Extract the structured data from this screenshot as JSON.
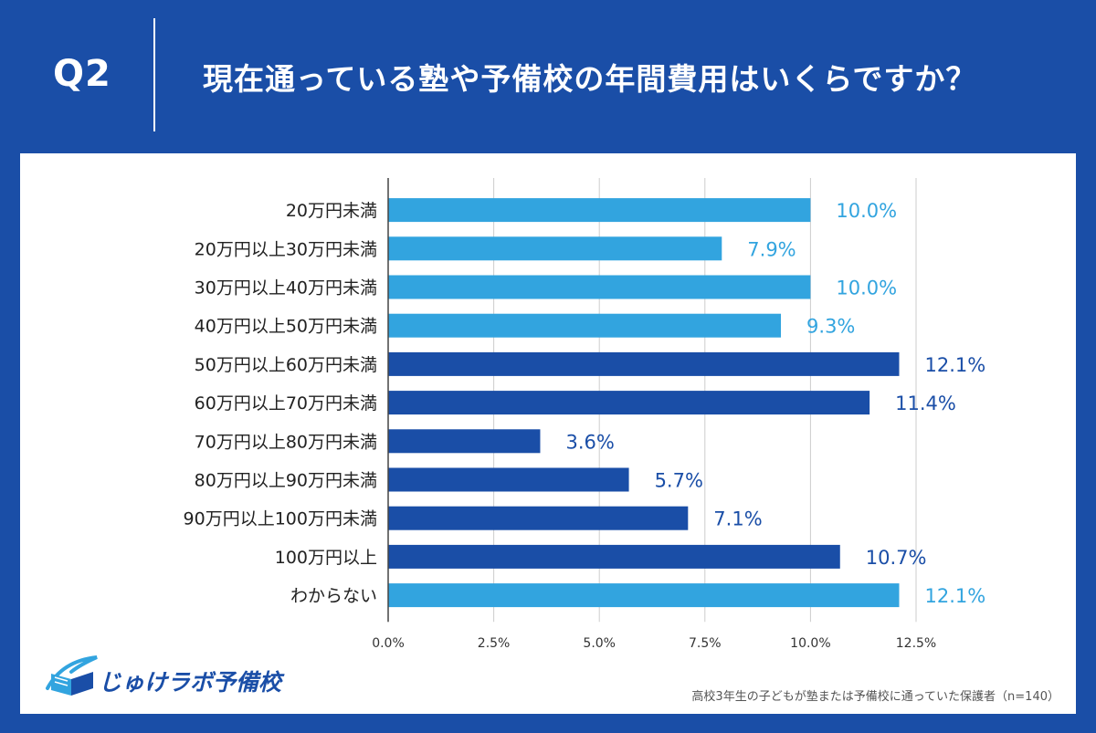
{
  "header": {
    "q_label": "Q2",
    "title": "現在通っている塾や予備校の年間費用はいくらですか？"
  },
  "colors": {
    "background": "#1a4ea7",
    "bar_light": "#32a4df",
    "bar_dark": "#1a4ea7",
    "grid": "#cccccc",
    "panel": "#ffffff"
  },
  "chart_data": {
    "type": "bar",
    "orientation": "horizontal",
    "categories": [
      "20万円未満",
      "20万円以上30万円未満",
      "30万円以上40万円未満",
      "40万円以上50万円未満",
      "50万円以上60万円未満",
      "60万円以上70万円未満",
      "70万円以上80万円未満",
      "80万円以上90万円未満",
      "90万円以上100万円未満",
      "100万円以上",
      "わからない"
    ],
    "values": [
      10.0,
      7.9,
      10.0,
      9.3,
      12.1,
      11.4,
      3.6,
      5.7,
      7.1,
      10.7,
      12.1
    ],
    "value_labels": [
      "10.0%",
      "7.9%",
      "10.0%",
      "9.3%",
      "12.1%",
      "11.4%",
      "3.6%",
      "5.7%",
      "7.1%",
      "10.7%",
      "12.1%"
    ],
    "bar_colors": [
      "light",
      "light",
      "light",
      "light",
      "dark",
      "dark",
      "dark",
      "dark",
      "dark",
      "dark",
      "light"
    ],
    "xlim": [
      0,
      12.5
    ],
    "xticks": [
      0,
      2.5,
      5,
      7.5,
      10,
      12.5
    ],
    "xtick_labels": [
      "0.0%",
      "2.5%",
      "5.0%",
      "7.5%",
      "10.0%",
      "12.5%"
    ],
    "grid": true,
    "xlabel": "",
    "ylabel": ""
  },
  "logo": {
    "text": "じゅけラボ予備校",
    "icon": "book-icon"
  },
  "footnote": "高校3年生の子どもが塾または予備校に通っていた保護者（n=140）"
}
